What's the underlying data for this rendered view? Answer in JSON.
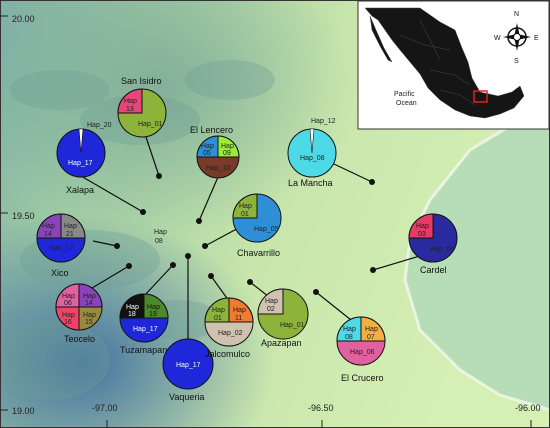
{
  "coordinates": {
    "lat_top": "20.00",
    "lat_mid": "19.50",
    "lat_bottom": "19.00",
    "lon_left": "-97.00",
    "lon_mid": "-96.50",
    "lon_right": "-96.00"
  },
  "inset": {
    "ocean_label": "Pacific\nOcean",
    "compass": {
      "n": "N",
      "s": "S",
      "e": "E",
      "w": "W"
    }
  },
  "locations": {
    "san_isidro": "San Isidro",
    "el_lencero": "El Lencero",
    "la_mancha": "La Mancha",
    "xalapa": "Xalapa",
    "xico": "Xico",
    "chavarrillo": "Chavarrillo",
    "cardel": "Cardel",
    "teocelo": "Teocelo",
    "tuzamapan": "Tuzamapan",
    "jalcomulco": "Jalcomulco",
    "apazapan": "Apazapan",
    "vaqueria": "Vaqueria",
    "el_crucero": "El Crucero"
  },
  "haplotypes": {
    "hap_01": "Hap_01",
    "hap_02": "Hap_02",
    "hap_04": "Hap_04",
    "hap_05": "Hap_05",
    "hap_06": "Hap_06",
    "hap_08": "Hap_08",
    "hap_10": "Hap_10",
    "hap_12": "Hap_12",
    "hap_17": "Hap_17",
    "hap_20": "Hap_20",
    "hap_03_l1": "Hap",
    "hap_03_l2": "03",
    "hap_05_l1": "Hap",
    "hap_05_l2": "05",
    "hap_09_l1": "Hap",
    "hap_09_l2": "09",
    "hap_13_l1": "Hap",
    "hap_13_l2": "13",
    "hap_14_l1": "Hap",
    "hap_14_l2": "14",
    "hap_21_l1": "Hap",
    "hap_21_l2": "21",
    "hap_08_l1": "Hap",
    "hap_08_l2": "08",
    "hap_06_l1": "Hap",
    "hap_06_l2": "06",
    "hap_16_l1": "Hap",
    "hap_16_l2": "16",
    "hap_15_l1": "Hap",
    "hap_15_l2": "15",
    "hap_18_l1": "Hap",
    "hap_18_l2": "18",
    "hap_19_l1": "Hap",
    "hap_19_l2": "19",
    "hap_01_l1": "Hap",
    "hap_01_l2": "01",
    "hap_11_l1": "Hap",
    "hap_11_l2": "11",
    "hap_02_l1": "Hap",
    "hap_02_l2": "02",
    "hap_07_l1": "Hap",
    "hap_07_l2": "07"
  },
  "colors": {
    "hap_01": "#8db33a",
    "hap_02": "#cfc2b0",
    "hap_03": "#e63a67",
    "hap_04": "#2a2aa0",
    "hap_05": "#2f8fd6",
    "hap_06": "#e060a0",
    "hap_07": "#f2b040",
    "hap_08": "#4dd9e6",
    "hap_09": "#99ee33",
    "hap_10": "#7a3a2a",
    "hap_11": "#f07a30",
    "hap_12": "#ffffff",
    "hap_13": "#e8457a",
    "hap_14": "#8a44bb",
    "hap_15": "#9a8a40",
    "hap_16": "#ee4466",
    "hap_17": "#1e28d8",
    "hap_18": "#111111",
    "hap_19": "#4a8a2a",
    "hap_20": "#ffffff",
    "hap_21": "#888888"
  }
}
